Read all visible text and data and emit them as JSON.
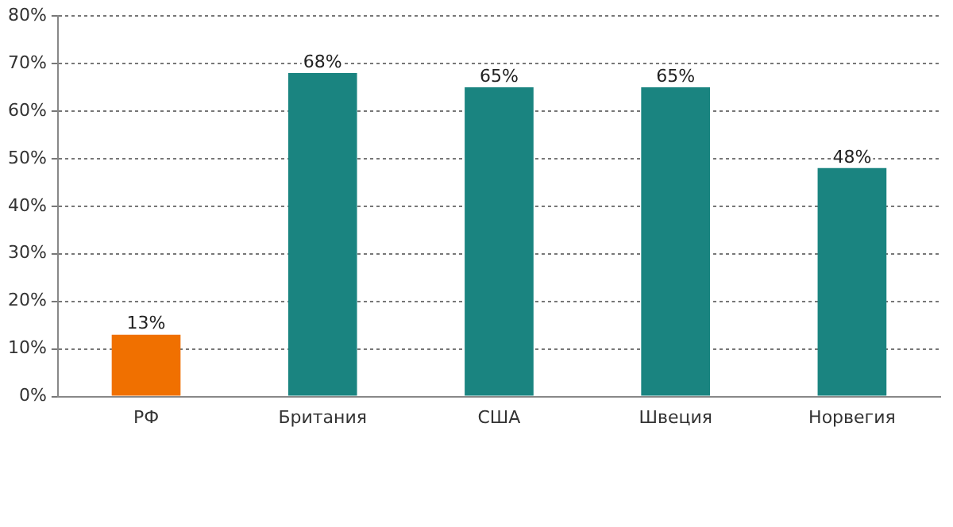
{
  "chart_data": {
    "type": "bar",
    "categories": [
      "РФ",
      "Британия",
      "США",
      "Швеция",
      "Норвегия"
    ],
    "values": [
      13,
      68,
      65,
      65,
      48
    ],
    "colors": [
      "#f07000",
      "#1a8480",
      "#1a8480",
      "#1a8480",
      "#1a8480"
    ],
    "value_labels": [
      "13%",
      "68%",
      "65%",
      "65%",
      "48%"
    ],
    "ylim": [
      0,
      80
    ],
    "yticks": [
      {
        "value": 0,
        "label": "0%"
      },
      {
        "value": 10,
        "label": "10%"
      },
      {
        "value": 20,
        "label": "20%"
      },
      {
        "value": 30,
        "label": "30%"
      },
      {
        "value": 40,
        "label": "40%"
      },
      {
        "value": 50,
        "label": "50%"
      },
      {
        "value": 60,
        "label": "60%"
      },
      {
        "value": 70,
        "label": "70%"
      },
      {
        "value": 80,
        "label": "80%"
      }
    ],
    "grid": "y",
    "legend": false
  }
}
